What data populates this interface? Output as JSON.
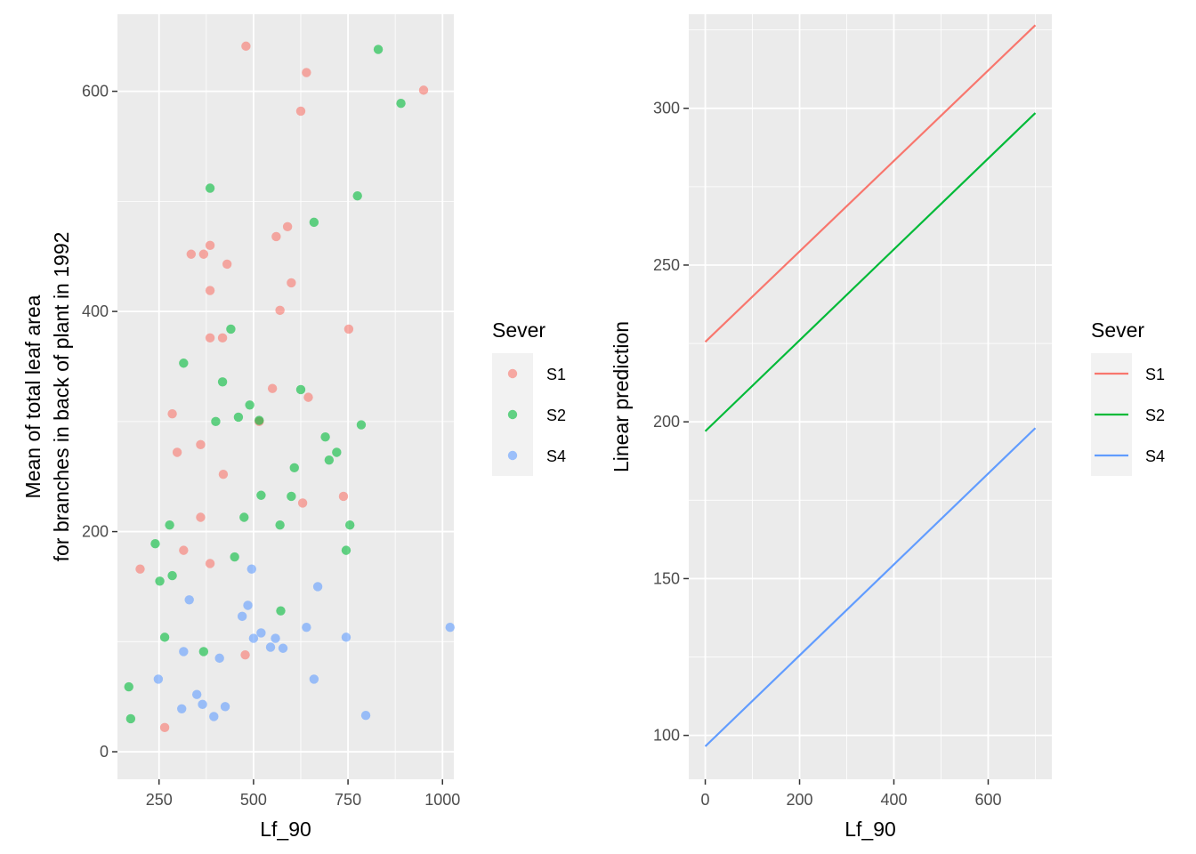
{
  "chart_data": [
    {
      "type": "scatter",
      "xlabel": "Lf_90",
      "ylabel_lines": [
        "Mean of total leaf area",
        "for branches in back of plant in 1992"
      ],
      "xlim": [
        140,
        1030
      ],
      "ylim": [
        -25,
        670
      ],
      "xticks": [
        250,
        500,
        750,
        1000
      ],
      "yticks": [
        0,
        200,
        400,
        600
      ],
      "grid": true,
      "legend": {
        "title": "Sever",
        "position": "right",
        "entries": [
          {
            "label": "S1",
            "color": "#F8766D"
          },
          {
            "label": "S2",
            "color": "#00BA38"
          },
          {
            "label": "S4",
            "color": "#619CFF"
          }
        ]
      },
      "series": [
        {
          "name": "S1",
          "color": "#F8766D",
          "points": [
            [
              480,
              641
            ],
            [
              640,
              617
            ],
            [
              950,
              601
            ],
            [
              625,
              582
            ],
            [
              385,
              460
            ],
            [
              335,
              452
            ],
            [
              368,
              452
            ],
            [
              430,
              443
            ],
            [
              590,
              477
            ],
            [
              560,
              468
            ],
            [
              600,
              426
            ],
            [
              385,
              419
            ],
            [
              570,
              401
            ],
            [
              385,
              376
            ],
            [
              418,
              376
            ],
            [
              752,
              384
            ],
            [
              550,
              330
            ],
            [
              645,
              322
            ],
            [
              515,
              300
            ],
            [
              285,
              307
            ],
            [
              298,
              272
            ],
            [
              360,
              279
            ],
            [
              420,
              252
            ],
            [
              738,
              232
            ],
            [
              630,
              226
            ],
            [
              360,
              213
            ],
            [
              315,
              183
            ],
            [
              385,
              171
            ],
            [
              200,
              166
            ],
            [
              478,
              88
            ],
            [
              265,
              22
            ]
          ]
        },
        {
          "name": "S2",
          "color": "#00BA38",
          "points": [
            [
              830,
              638
            ],
            [
              890,
              589
            ],
            [
              385,
              512
            ],
            [
              775,
              505
            ],
            [
              660,
              481
            ],
            [
              440,
              384
            ],
            [
              315,
              353
            ],
            [
              418,
              336
            ],
            [
              625,
              329
            ],
            [
              490,
              315
            ],
            [
              460,
              304
            ],
            [
              515,
              301
            ],
            [
              400,
              300
            ],
            [
              785,
              297
            ],
            [
              690,
              286
            ],
            [
              720,
              272
            ],
            [
              700,
              265
            ],
            [
              608,
              258
            ],
            [
              520,
              233
            ],
            [
              600,
              232
            ],
            [
              475,
              213
            ],
            [
              570,
              206
            ],
            [
              755,
              206
            ],
            [
              278,
              206
            ],
            [
              240,
              189
            ],
            [
              745,
              183
            ],
            [
              450,
              177
            ],
            [
              285,
              160
            ],
            [
              252,
              155
            ],
            [
              572,
              128
            ],
            [
              265,
              104
            ],
            [
              368,
              91
            ],
            [
              170,
              59
            ],
            [
              175,
              30
            ]
          ]
        },
        {
          "name": "S4",
          "color": "#619CFF",
          "points": [
            [
              1020,
              113
            ],
            [
              495,
              166
            ],
            [
              670,
              150
            ],
            [
              330,
              138
            ],
            [
              485,
              133
            ],
            [
              470,
              123
            ],
            [
              640,
              113
            ],
            [
              520,
              108
            ],
            [
              500,
              103
            ],
            [
              558,
              103
            ],
            [
              745,
              104
            ],
            [
              545,
              95
            ],
            [
              578,
              94
            ],
            [
              315,
              91
            ],
            [
              410,
              85
            ],
            [
              248,
              66
            ],
            [
              660,
              66
            ],
            [
              350,
              52
            ],
            [
              365,
              43
            ],
            [
              425,
              41
            ],
            [
              310,
              39
            ],
            [
              395,
              32
            ],
            [
              797,
              33
            ]
          ]
        }
      ]
    },
    {
      "type": "line",
      "xlabel": "Lf_90",
      "ylabel": "Linear prediction",
      "xlim": [
        -35,
        735
      ],
      "ylim": [
        86,
        330
      ],
      "xticks": [
        0,
        200,
        400,
        600
      ],
      "yticks": [
        100,
        150,
        200,
        250,
        300
      ],
      "grid": true,
      "legend": {
        "title": "Sever",
        "position": "right",
        "entries": [
          {
            "label": "S1",
            "color": "#F8766D"
          },
          {
            "label": "S2",
            "color": "#00BA38"
          },
          {
            "label": "S4",
            "color": "#619CFF"
          }
        ]
      },
      "series": [
        {
          "name": "S1",
          "color": "#F8766D",
          "x": [
            0,
            700
          ],
          "y": [
            225.5,
            326.5
          ]
        },
        {
          "name": "S2",
          "color": "#00BA38",
          "x": [
            0,
            700
          ],
          "y": [
            197,
            298.5
          ]
        },
        {
          "name": "S4",
          "color": "#619CFF",
          "x": [
            0,
            700
          ],
          "y": [
            96.5,
            198
          ]
        }
      ]
    }
  ]
}
